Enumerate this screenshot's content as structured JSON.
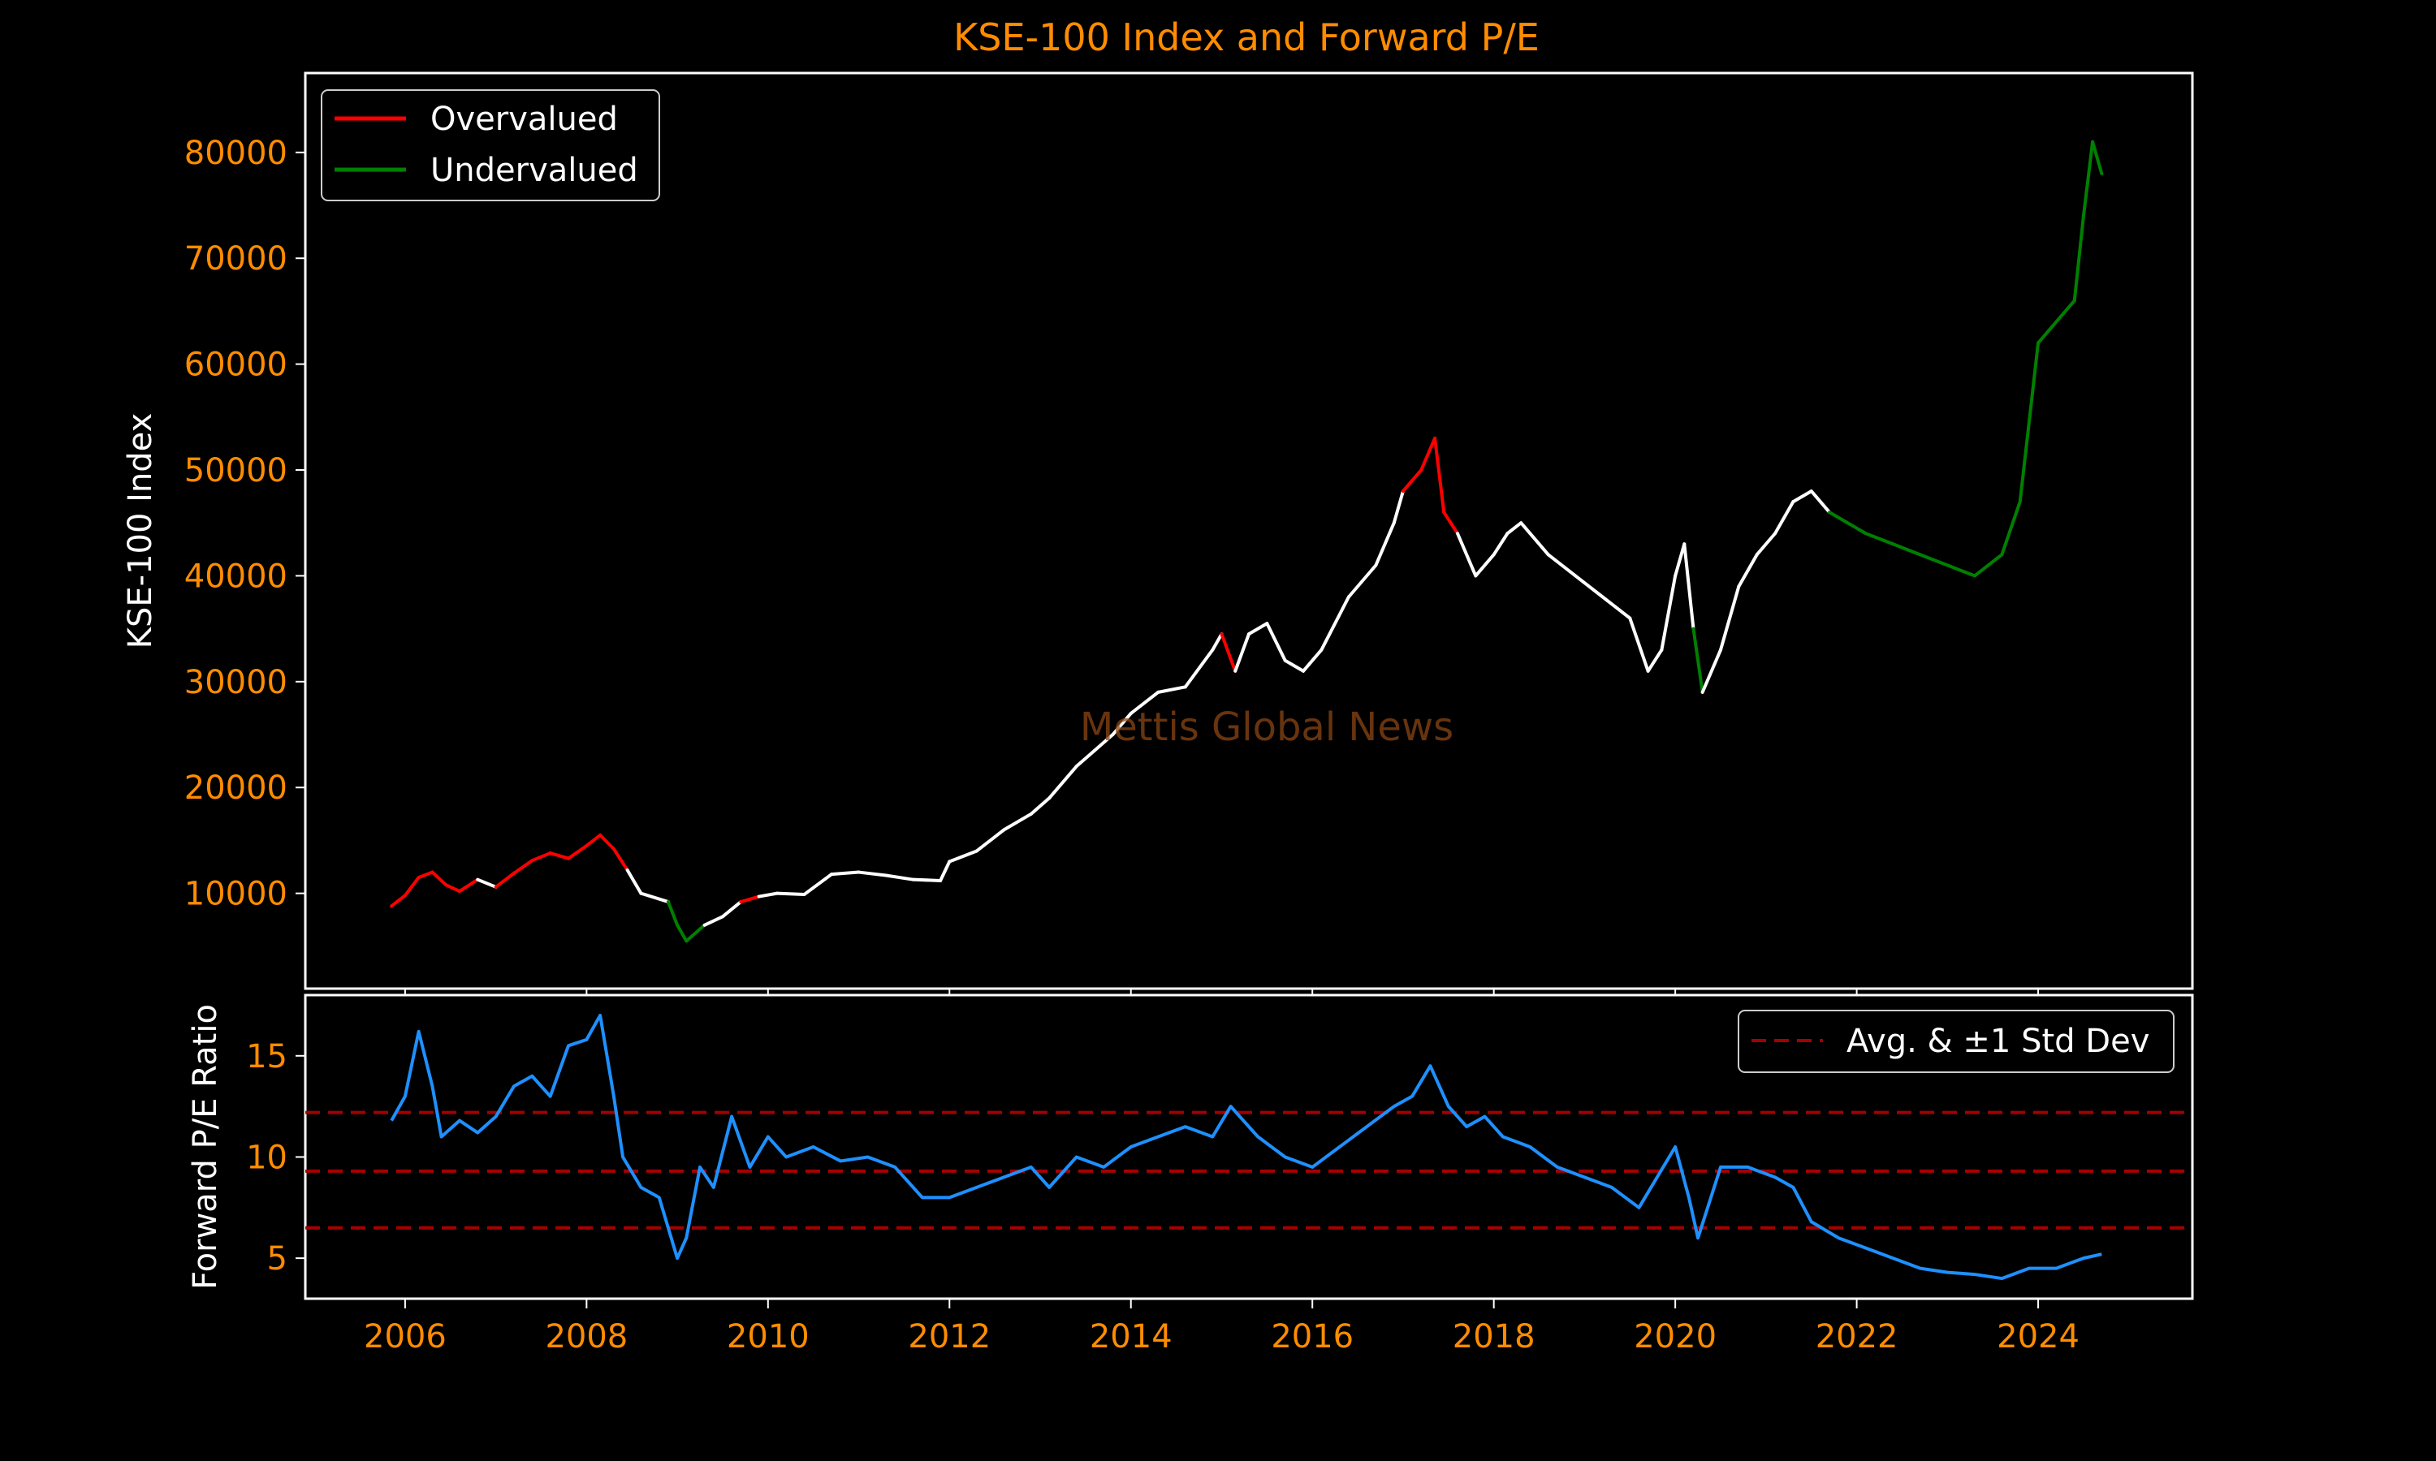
{
  "chart_data": [
    {
      "type": "line",
      "title": "KSE-100 Index and Forward P/E",
      "ylabel": "KSE-100 Index",
      "xlabel": "",
      "watermark": "Mettis Global News",
      "xlim": [
        2004.9,
        2025.7
      ],
      "ylim": [
        1000,
        87500
      ],
      "yticks": [
        10000,
        20000,
        30000,
        40000,
        50000,
        60000,
        70000,
        80000
      ],
      "legend": {
        "position": "upper-left",
        "entries": [
          {
            "label": "Overvalued",
            "color": "#ff0000"
          },
          {
            "label": "Undervalued",
            "color": "#008000"
          }
        ]
      },
      "colors": {
        "neutral": "#ffffff",
        "over": "#ff0000",
        "under": "#008000"
      },
      "series": [
        {
          "x": [
            2005.85,
            2006.0,
            2006.15,
            2006.3,
            2006.45,
            2006.6,
            2006.8,
            2007.0,
            2007.2,
            2007.4,
            2007.6,
            2007.8,
            2008.0,
            2008.15,
            2008.3,
            2008.45,
            2008.6,
            2008.9,
            2009.0,
            2009.1,
            2009.3,
            2009.5,
            2009.7,
            2009.9,
            2010.1,
            2010.4,
            2010.7,
            2011.0,
            2011.3,
            2011.6,
            2011.9,
            2012.0,
            2012.3,
            2012.6,
            2012.9,
            2013.1,
            2013.4,
            2013.6,
            2013.8,
            2014.0,
            2014.3,
            2014.6,
            2014.9,
            2015.0,
            2015.15,
            2015.3,
            2015.5,
            2015.7,
            2015.9,
            2016.1,
            2016.4,
            2016.7,
            2016.9,
            2017.0,
            2017.2,
            2017.35,
            2017.45,
            2017.6,
            2017.8,
            2018.0,
            2018.15,
            2018.3,
            2018.6,
            2018.9,
            2019.2,
            2019.5,
            2019.7,
            2019.85,
            2020.0,
            2020.1,
            2020.2,
            2020.3,
            2020.5,
            2020.7,
            2020.9,
            2021.1,
            2021.3,
            2021.5,
            2021.7,
            2021.9,
            2022.1,
            2022.4,
            2022.7,
            2023.0,
            2023.3,
            2023.6,
            2023.8,
            2024.0,
            2024.2,
            2024.4,
            2024.5,
            2024.6,
            2024.7
          ],
          "y": [
            8800,
            9800,
            11500,
            12000,
            10800,
            10200,
            11300,
            10600,
            11900,
            13100,
            13800,
            13300,
            14500,
            15500,
            14200,
            12200,
            10000,
            9200,
            7000,
            5500,
            7000,
            7800,
            9200,
            9700,
            10000,
            9900,
            11800,
            12000,
            11700,
            11300,
            11200,
            13000,
            14000,
            16000,
            17500,
            19000,
            22000,
            23500,
            25000,
            27000,
            29000,
            29500,
            33000,
            34500,
            31000,
            34500,
            35500,
            32000,
            31000,
            33000,
            38000,
            41000,
            45000,
            48000,
            50000,
            53000,
            46000,
            44000,
            40000,
            42000,
            44000,
            45000,
            42000,
            40000,
            38000,
            36000,
            31000,
            33000,
            40000,
            43000,
            35000,
            29000,
            33000,
            39000,
            42000,
            44000,
            47000,
            48000,
            46000,
            45000,
            44000,
            43000,
            42000,
            41000,
            40000,
            42000,
            47000,
            62000,
            64000,
            66000,
            74000,
            81000,
            78000
          ]
        }
      ],
      "segments": [
        {
          "x_start": 2005.85,
          "x_end": 2006.75,
          "state": "over"
        },
        {
          "x_start": 2007.1,
          "x_end": 2008.4,
          "state": "over"
        },
        {
          "x_start": 2008.95,
          "x_end": 2009.2,
          "state": "under"
        },
        {
          "x_start": 2009.75,
          "x_end": 2009.85,
          "state": "over"
        },
        {
          "x_start": 2015.0,
          "x_end": 2015.15,
          "state": "over"
        },
        {
          "x_start": 2017.0,
          "x_end": 2017.6,
          "state": "over"
        },
        {
          "x_start": 2020.25,
          "x_end": 2020.32,
          "state": "under"
        },
        {
          "x_start": 2021.7,
          "x_end": 2024.7,
          "state": "under"
        }
      ]
    },
    {
      "type": "line",
      "title": "",
      "ylabel": "Forward P/E Ratio",
      "xlabel": "",
      "xlim": [
        2004.9,
        2025.7
      ],
      "ylim": [
        3,
        18
      ],
      "yticks": [
        5,
        10,
        15
      ],
      "xticks": [
        2006,
        2008,
        2010,
        2012,
        2014,
        2016,
        2018,
        2020,
        2022,
        2024
      ],
      "legend": {
        "position": "upper-right",
        "entries": [
          {
            "label": "Avg. & ±1 Std Dev",
            "color": "#a50000",
            "dashed": true
          }
        ]
      },
      "series": [
        {
          "color": "#1e90ff",
          "x": [
            2005.85,
            2006.0,
            2006.15,
            2006.3,
            2006.4,
            2006.6,
            2006.8,
            2007.0,
            2007.2,
            2007.4,
            2007.6,
            2007.8,
            2008.0,
            2008.15,
            2008.3,
            2008.4,
            2008.6,
            2008.8,
            2009.0,
            2009.1,
            2009.25,
            2009.4,
            2009.6,
            2009.8,
            2010.0,
            2010.2,
            2010.5,
            2010.8,
            2011.1,
            2011.4,
            2011.7,
            2012.0,
            2012.3,
            2012.6,
            2012.9,
            2013.1,
            2013.4,
            2013.7,
            2014.0,
            2014.3,
            2014.6,
            2014.9,
            2015.1,
            2015.4,
            2015.7,
            2016.0,
            2016.3,
            2016.6,
            2016.9,
            2017.1,
            2017.3,
            2017.5,
            2017.7,
            2017.9,
            2018.1,
            2018.4,
            2018.7,
            2019.0,
            2019.3,
            2019.6,
            2019.8,
            2020.0,
            2020.15,
            2020.25,
            2020.5,
            2020.8,
            2021.1,
            2021.3,
            2021.5,
            2021.8,
            2022.1,
            2022.4,
            2022.7,
            2023.0,
            2023.3,
            2023.6,
            2023.9,
            2024.2,
            2024.5,
            2024.7
          ],
          "y": [
            11.8,
            13.0,
            16.2,
            13.5,
            11.0,
            11.8,
            11.2,
            12.0,
            13.5,
            14.0,
            13.0,
            15.5,
            15.8,
            17.0,
            13.0,
            10.0,
            8.5,
            8.0,
            5.0,
            6.0,
            9.5,
            8.5,
            12.0,
            9.5,
            11.0,
            10.0,
            10.5,
            9.8,
            10.0,
            9.5,
            8.0,
            8.0,
            8.5,
            9.0,
            9.5,
            8.5,
            10.0,
            9.5,
            10.5,
            11.0,
            11.5,
            11.0,
            12.5,
            11.0,
            10.0,
            9.5,
            10.5,
            11.5,
            12.5,
            13.0,
            14.5,
            12.5,
            11.5,
            12.0,
            11.0,
            10.5,
            9.5,
            9.0,
            8.5,
            7.5,
            9.0,
            10.5,
            8.0,
            6.0,
            9.5,
            9.5,
            9.0,
            8.5,
            6.8,
            6.0,
            5.5,
            5.0,
            4.5,
            4.3,
            4.2,
            4.0,
            4.5,
            4.5,
            5.0,
            5.2
          ]
        }
      ],
      "reference_lines": [
        {
          "y": 9.3,
          "label": "Avg."
        },
        {
          "y": 12.2,
          "label": "+1 Std Dev"
        },
        {
          "y": 6.5,
          "label": "-1 Std Dev"
        }
      ]
    }
  ]
}
